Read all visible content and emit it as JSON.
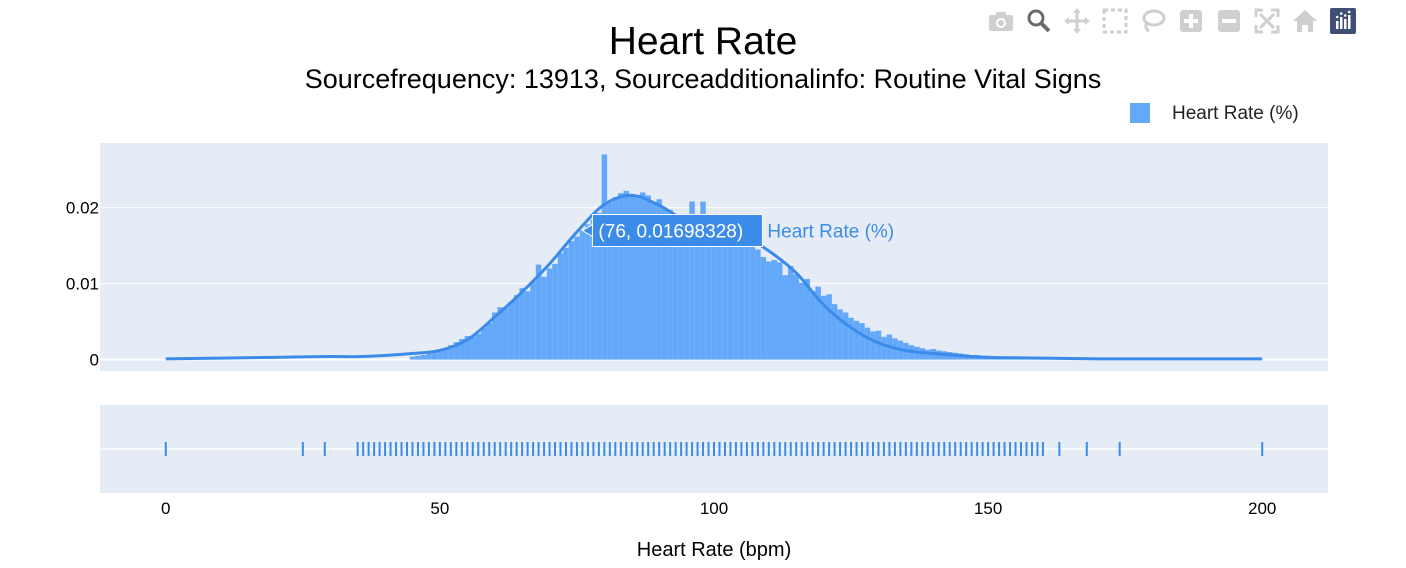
{
  "chart_data": {
    "type": "bar",
    "title": "Heart Rate",
    "subtitle": "Sourcefrequency: 13913, Sourceadditionalinfo: Routine Vital Signs",
    "xlabel": "Heart Rate (bpm)",
    "ylabel": "",
    "xlim": [
      -12,
      212
    ],
    "ylim": [
      -0.0015,
      0.0285
    ],
    "x_ticks": [
      0,
      50,
      100,
      150,
      200
    ],
    "y_ticks": [
      0,
      0.01,
      0.02
    ],
    "x_tick_labels": [
      "0",
      "50",
      "100",
      "150",
      "200"
    ],
    "y_tick_labels": [
      "0",
      "0.01",
      "0.02"
    ],
    "grid": true,
    "legend_position": "top-right",
    "series": [
      {
        "name": "Heart Rate (%)",
        "type": "histogram",
        "color": "#64a8fa",
        "bin_width": 1,
        "x": [
          45,
          46,
          47,
          48,
          49,
          50,
          51,
          52,
          53,
          54,
          55,
          56,
          57,
          58,
          59,
          60,
          61,
          62,
          63,
          64,
          65,
          66,
          67,
          68,
          69,
          70,
          71,
          72,
          73,
          74,
          75,
          76,
          77,
          78,
          79,
          80,
          81,
          82,
          83,
          84,
          85,
          86,
          87,
          88,
          89,
          90,
          91,
          92,
          93,
          94,
          95,
          96,
          97,
          98,
          99,
          100,
          101,
          102,
          103,
          104,
          105,
          106,
          107,
          108,
          109,
          110,
          111,
          112,
          113,
          114,
          115,
          116,
          117,
          118,
          119,
          120,
          121,
          122,
          123,
          124,
          125,
          126,
          127,
          128,
          129,
          130,
          131,
          132,
          133,
          134,
          135,
          136,
          137,
          138,
          139,
          140,
          141,
          142,
          143,
          144,
          145,
          146,
          147,
          148,
          149,
          150,
          151,
          152,
          153,
          154,
          155,
          156,
          157,
          158,
          159,
          160
        ],
        "values": [
          0.0004,
          0.0005,
          0.0006,
          0.0008,
          0.001,
          0.0012,
          0.0015,
          0.0019,
          0.0023,
          0.0027,
          0.0031,
          0.003,
          0.0034,
          0.0042,
          0.0048,
          0.0062,
          0.0069,
          0.0068,
          0.0076,
          0.0085,
          0.0094,
          0.009,
          0.0103,
          0.0125,
          0.0109,
          0.012,
          0.0126,
          0.014,
          0.0147,
          0.0156,
          0.0162,
          0.017,
          0.0178,
          0.0184,
          0.0193,
          0.027,
          0.0207,
          0.0214,
          0.0219,
          0.0222,
          0.0218,
          0.0214,
          0.022,
          0.0216,
          0.0207,
          0.0211,
          0.02,
          0.0197,
          0.0189,
          0.019,
          0.0184,
          0.0208,
          0.0191,
          0.0208,
          0.0178,
          0.0174,
          0.0173,
          0.0167,
          0.0172,
          0.0164,
          0.0165,
          0.0158,
          0.0155,
          0.0145,
          0.0135,
          0.0129,
          0.0131,
          0.0128,
          0.0111,
          0.0123,
          0.0112,
          0.0101,
          0.0106,
          0.009,
          0.0096,
          0.0084,
          0.0086,
          0.0073,
          0.0066,
          0.0062,
          0.0055,
          0.0051,
          0.0048,
          0.0042,
          0.0037,
          0.0038,
          0.003,
          0.0033,
          0.0028,
          0.0025,
          0.0022,
          0.0019,
          0.0017,
          0.0015,
          0.0013,
          0.0014,
          0.0012,
          0.0011,
          0.001,
          0.0009,
          0.0008,
          0.0007,
          0.0006,
          0.0006,
          0.0005,
          0.0005,
          0.0004,
          0.0004,
          0.0003,
          0.0003,
          0.0003,
          0.0002,
          0.0002,
          0.0002,
          0.0002,
          0.0001
        ]
      },
      {
        "type": "kde",
        "color": "#3c8be8",
        "x": [
          0,
          10,
          20,
          30,
          36,
          45,
          50,
          55,
          60,
          65,
          70,
          75,
          80,
          85,
          90,
          95,
          100,
          105,
          110,
          115,
          120,
          125,
          130,
          135,
          140,
          145,
          150,
          160,
          170,
          180,
          190,
          200
        ],
        "values": [
          0.0001,
          0.0002,
          0.0003,
          0.0004,
          0.0004,
          0.0008,
          0.0012,
          0.0026,
          0.0056,
          0.0089,
          0.0126,
          0.0168,
          0.0204,
          0.0216,
          0.0203,
          0.0182,
          0.0172,
          0.0164,
          0.0143,
          0.0114,
          0.0072,
          0.0042,
          0.0022,
          0.0012,
          0.0008,
          0.0005,
          0.0003,
          0.0002,
          0.0001,
          0.0001,
          0.0001,
          0.0001
        ]
      }
    ],
    "rug": {
      "color": "#3c8be8",
      "x": [
        0,
        25,
        29,
        35,
        36,
        37,
        38,
        39,
        40,
        41,
        42,
        43,
        44,
        45,
        46,
        47,
        48,
        49,
        50,
        51,
        52,
        53,
        54,
        55,
        56,
        57,
        58,
        59,
        60,
        61,
        62,
        63,
        64,
        65,
        66,
        67,
        68,
        69,
        70,
        71,
        72,
        73,
        74,
        75,
        76,
        77,
        78,
        79,
        80,
        81,
        82,
        83,
        84,
        85,
        86,
        87,
        88,
        89,
        90,
        91,
        92,
        93,
        94,
        95,
        96,
        97,
        98,
        99,
        100,
        101,
        102,
        103,
        104,
        105,
        106,
        107,
        108,
        109,
        110,
        111,
        112,
        113,
        114,
        115,
        116,
        117,
        118,
        119,
        120,
        121,
        122,
        123,
        124,
        125,
        126,
        127,
        128,
        129,
        130,
        131,
        132,
        133,
        134,
        135,
        136,
        137,
        138,
        139,
        140,
        141,
        142,
        143,
        144,
        145,
        146,
        147,
        148,
        149,
        150,
        151,
        152,
        153,
        154,
        155,
        156,
        157,
        158,
        159,
        160,
        163,
        168,
        174,
        200
      ]
    },
    "hover": {
      "text": "(76, 0.01698328)",
      "series_label": "Heart Rate (%)",
      "x": 76,
      "y": 0.01698328
    }
  },
  "modebar": {
    "buttons": [
      "camera-icon",
      "zoom-icon",
      "pan-icon",
      "box-select-icon",
      "lasso-icon",
      "zoom-in-icon",
      "zoom-out-icon",
      "autoscale-icon",
      "home-icon",
      "plotly-logo-icon"
    ]
  }
}
